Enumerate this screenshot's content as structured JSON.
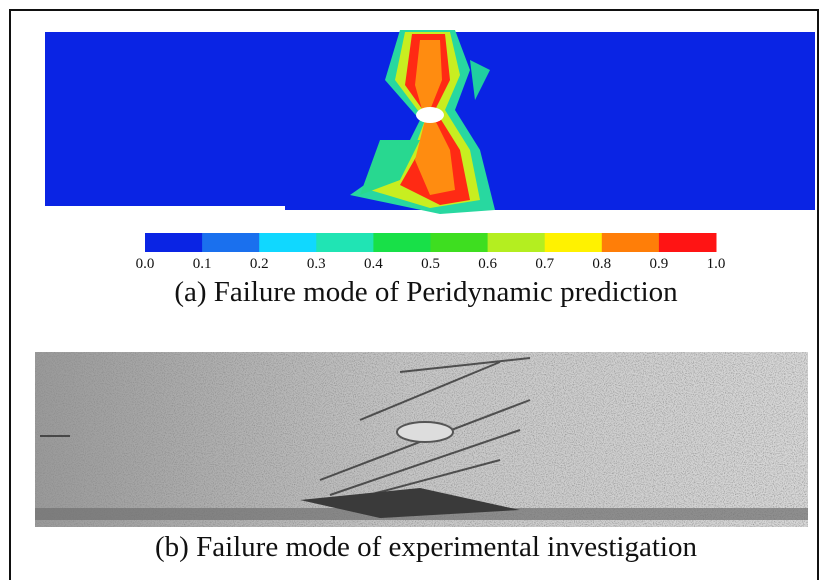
{
  "colorbar": {
    "ticks": [
      "0.0",
      "0.1",
      "0.2",
      "0.3",
      "0.4",
      "0.5",
      "0.6",
      "0.7",
      "0.8",
      "0.9",
      "1.0"
    ],
    "colors": [
      "#0a24e4",
      "#1a70ee",
      "#10d8ff",
      "#20e4b4",
      "#18e048",
      "#3ede20",
      "#b4ee20",
      "#fff200",
      "#ff7e08",
      "#ff1414"
    ]
  },
  "captions": {
    "a": "(a) Failure mode of Peridynamic prediction",
    "b": "(b) Failure mode of experimental investigation"
  }
}
